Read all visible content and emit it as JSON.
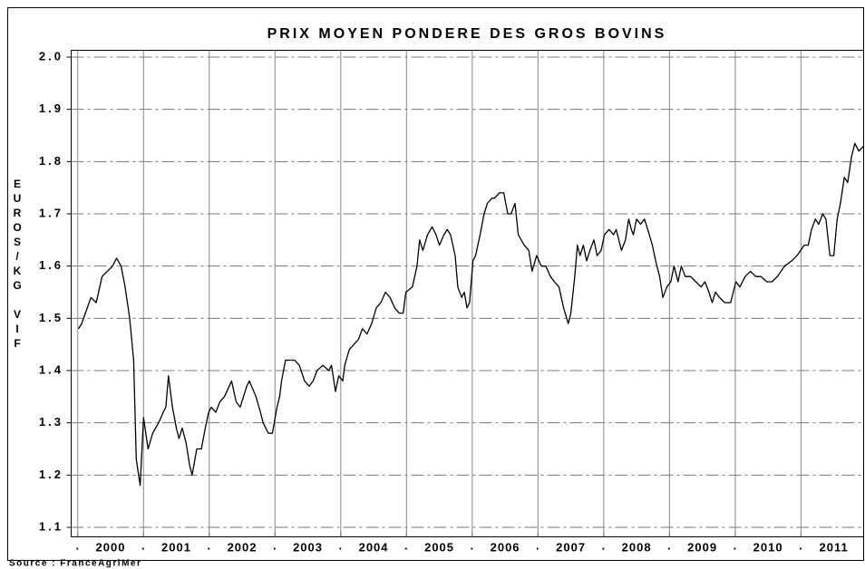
{
  "chart_data": {
    "type": "line",
    "title": "PRIX MOYEN PONDERE DES GROS BOVINS",
    "y_label": "EUROS/KG VIF",
    "source": "Source : FranceAgriMer",
    "color": "#000000",
    "xlim": [
      1999.9,
      2011.96
    ],
    "ylim": [
      1.1,
      2.0
    ],
    "yticks": [
      {
        "value": 1.1,
        "label": "1.1"
      },
      {
        "value": 1.2,
        "label": "1.2"
      },
      {
        "value": 1.3,
        "label": "1.3"
      },
      {
        "value": 1.4,
        "label": "1.4"
      },
      {
        "value": 1.5,
        "label": "1.5"
      },
      {
        "value": 1.6,
        "label": "1.6"
      },
      {
        "value": 1.7,
        "label": "1.7"
      },
      {
        "value": 1.8,
        "label": "1.8"
      },
      {
        "value": 1.9,
        "label": "1.9"
      },
      {
        "value": 2,
        "label": "2.0"
      }
    ],
    "xticks": [
      {
        "value": 2000,
        "label": "."
      },
      {
        "value": 2001,
        "label": "."
      },
      {
        "value": 2002,
        "label": "."
      },
      {
        "value": 2003,
        "label": "."
      },
      {
        "value": 2004,
        "label": "."
      },
      {
        "value": 2005,
        "label": "."
      },
      {
        "value": 2006,
        "label": "."
      },
      {
        "value": 2007,
        "label": "."
      },
      {
        "value": 2008,
        "label": "."
      },
      {
        "value": 2009,
        "label": "."
      },
      {
        "value": 2010,
        "label": "."
      },
      {
        "value": 2011,
        "label": "."
      }
    ],
    "year_labels": [
      {
        "value": 2000.5,
        "label": "2000"
      },
      {
        "value": 2001.5,
        "label": "2001"
      },
      {
        "value": 2002.5,
        "label": "2002"
      },
      {
        "value": 2003.5,
        "label": "2003"
      },
      {
        "value": 2004.5,
        "label": "2004"
      },
      {
        "value": 2005.5,
        "label": "2005"
      },
      {
        "value": 2006.5,
        "label": "2006"
      },
      {
        "value": 2007.5,
        "label": "2007"
      },
      {
        "value": 2008.5,
        "label": "2008"
      },
      {
        "value": 2009.5,
        "label": "2009"
      },
      {
        "value": 2010.5,
        "label": "2010"
      },
      {
        "value": 2011.5,
        "label": "2011"
      }
    ],
    "grid": true,
    "x": [
      2000.01,
      2000.06,
      2000.2,
      2000.28,
      2000.37,
      2000.45,
      2000.53,
      2000.59,
      2000.66,
      2000.72,
      2000.79,
      2000.85,
      2000.89,
      2000.95,
      2001.0,
      2001.07,
      2001.14,
      2001.23,
      2001.3,
      2001.34,
      2001.38,
      2001.44,
      2001.5,
      2001.54,
      2001.59,
      2001.65,
      2001.7,
      2001.74,
      2001.81,
      2001.88,
      2001.94,
      2001.99,
      2002.03,
      2002.1,
      2002.16,
      2002.23,
      2002.34,
      2002.41,
      2002.47,
      2002.57,
      2002.61,
      2002.71,
      2002.78,
      2002.82,
      2002.9,
      2002.96,
      2003.03,
      2003.07,
      2003.1,
      2003.16,
      2003.23,
      2003.3,
      2003.37,
      2003.45,
      2003.52,
      2003.58,
      2003.64,
      2003.73,
      2003.82,
      2003.86,
      2003.92,
      2003.97,
      2004.03,
      2004.06,
      2004.13,
      2004.2,
      2004.27,
      2004.33,
      2004.4,
      2004.47,
      2004.54,
      2004.61,
      2004.68,
      2004.75,
      2004.82,
      2004.89,
      2004.95,
      2004.99,
      2005.09,
      2005.16,
      2005.2,
      2005.25,
      2005.32,
      2005.39,
      2005.45,
      2005.5,
      2005.57,
      2005.62,
      2005.67,
      2005.74,
      2005.78,
      2005.84,
      2005.88,
      2005.92,
      2005.96,
      2006.01,
      2006.05,
      2006.12,
      2006.18,
      2006.23,
      2006.3,
      2006.34,
      2006.41,
      2006.48,
      2006.54,
      2006.59,
      2006.65,
      2006.7,
      2006.79,
      2006.86,
      2006.91,
      2006.98,
      2007.05,
      2007.12,
      2007.19,
      2007.25,
      2007.32,
      2007.39,
      2007.46,
      2007.5,
      2007.56,
      2007.6,
      2007.64,
      2007.69,
      2007.74,
      2007.79,
      2007.85,
      2007.9,
      2007.96,
      2008.01,
      2008.08,
      2008.15,
      2008.19,
      2008.23,
      2008.27,
      2008.33,
      2008.38,
      2008.42,
      2008.45,
      2008.5,
      2008.56,
      2008.62,
      2008.67,
      2008.74,
      2008.79,
      2008.85,
      2008.9,
      2008.96,
      2009.02,
      2009.07,
      2009.13,
      2009.18,
      2009.24,
      2009.32,
      2009.4,
      2009.48,
      2009.54,
      2009.6,
      2009.65,
      2009.7,
      2009.76,
      2009.84,
      2009.93,
      2010.01,
      2010.07,
      2010.15,
      2010.23,
      2010.31,
      2010.39,
      2010.48,
      2010.56,
      2010.64,
      2010.75,
      2010.86,
      2010.94,
      2011.05,
      2011.11,
      2011.16,
      2011.22,
      2011.27,
      2011.33,
      2011.38,
      2011.44,
      2011.5,
      2011.55,
      2011.6,
      2011.66,
      2011.71,
      2011.77,
      2011.82,
      2011.88,
      2011.96
    ],
    "values": [
      1.48,
      1.49,
      1.54,
      1.53,
      1.58,
      1.59,
      1.6,
      1.615,
      1.6,
      1.56,
      1.5,
      1.42,
      1.23,
      1.18,
      1.31,
      1.25,
      1.28,
      1.3,
      1.32,
      1.33,
      1.39,
      1.33,
      1.29,
      1.27,
      1.29,
      1.26,
      1.22,
      1.2,
      1.25,
      1.25,
      1.29,
      1.32,
      1.33,
      1.32,
      1.34,
      1.35,
      1.38,
      1.34,
      1.33,
      1.37,
      1.38,
      1.35,
      1.32,
      1.3,
      1.28,
      1.28,
      1.33,
      1.35,
      1.38,
      1.42,
      1.42,
      1.42,
      1.41,
      1.38,
      1.37,
      1.38,
      1.4,
      1.41,
      1.4,
      1.41,
      1.36,
      1.39,
      1.38,
      1.41,
      1.44,
      1.45,
      1.46,
      1.48,
      1.47,
      1.49,
      1.52,
      1.53,
      1.55,
      1.54,
      1.52,
      1.51,
      1.51,
      1.55,
      1.56,
      1.6,
      1.65,
      1.63,
      1.66,
      1.675,
      1.66,
      1.64,
      1.66,
      1.67,
      1.66,
      1.62,
      1.56,
      1.54,
      1.55,
      1.52,
      1.53,
      1.61,
      1.62,
      1.66,
      1.7,
      1.72,
      1.73,
      1.73,
      1.74,
      1.74,
      1.7,
      1.7,
      1.72,
      1.66,
      1.64,
      1.63,
      1.59,
      1.62,
      1.6,
      1.6,
      1.58,
      1.57,
      1.56,
      1.52,
      1.49,
      1.51,
      1.58,
      1.64,
      1.62,
      1.64,
      1.61,
      1.63,
      1.65,
      1.62,
      1.63,
      1.66,
      1.67,
      1.66,
      1.67,
      1.65,
      1.63,
      1.65,
      1.69,
      1.67,
      1.66,
      1.69,
      1.68,
      1.69,
      1.67,
      1.64,
      1.61,
      1.58,
      1.54,
      1.56,
      1.57,
      1.6,
      1.57,
      1.6,
      1.58,
      1.58,
      1.57,
      1.56,
      1.57,
      1.55,
      1.53,
      1.55,
      1.54,
      1.53,
      1.53,
      1.57,
      1.56,
      1.58,
      1.59,
      1.58,
      1.58,
      1.57,
      1.57,
      1.58,
      1.6,
      1.61,
      1.62,
      1.64,
      1.64,
      1.67,
      1.69,
      1.68,
      1.7,
      1.69,
      1.62,
      1.62,
      1.69,
      1.72,
      1.77,
      1.76,
      1.81,
      1.835,
      1.82,
      1.83
    ]
  }
}
